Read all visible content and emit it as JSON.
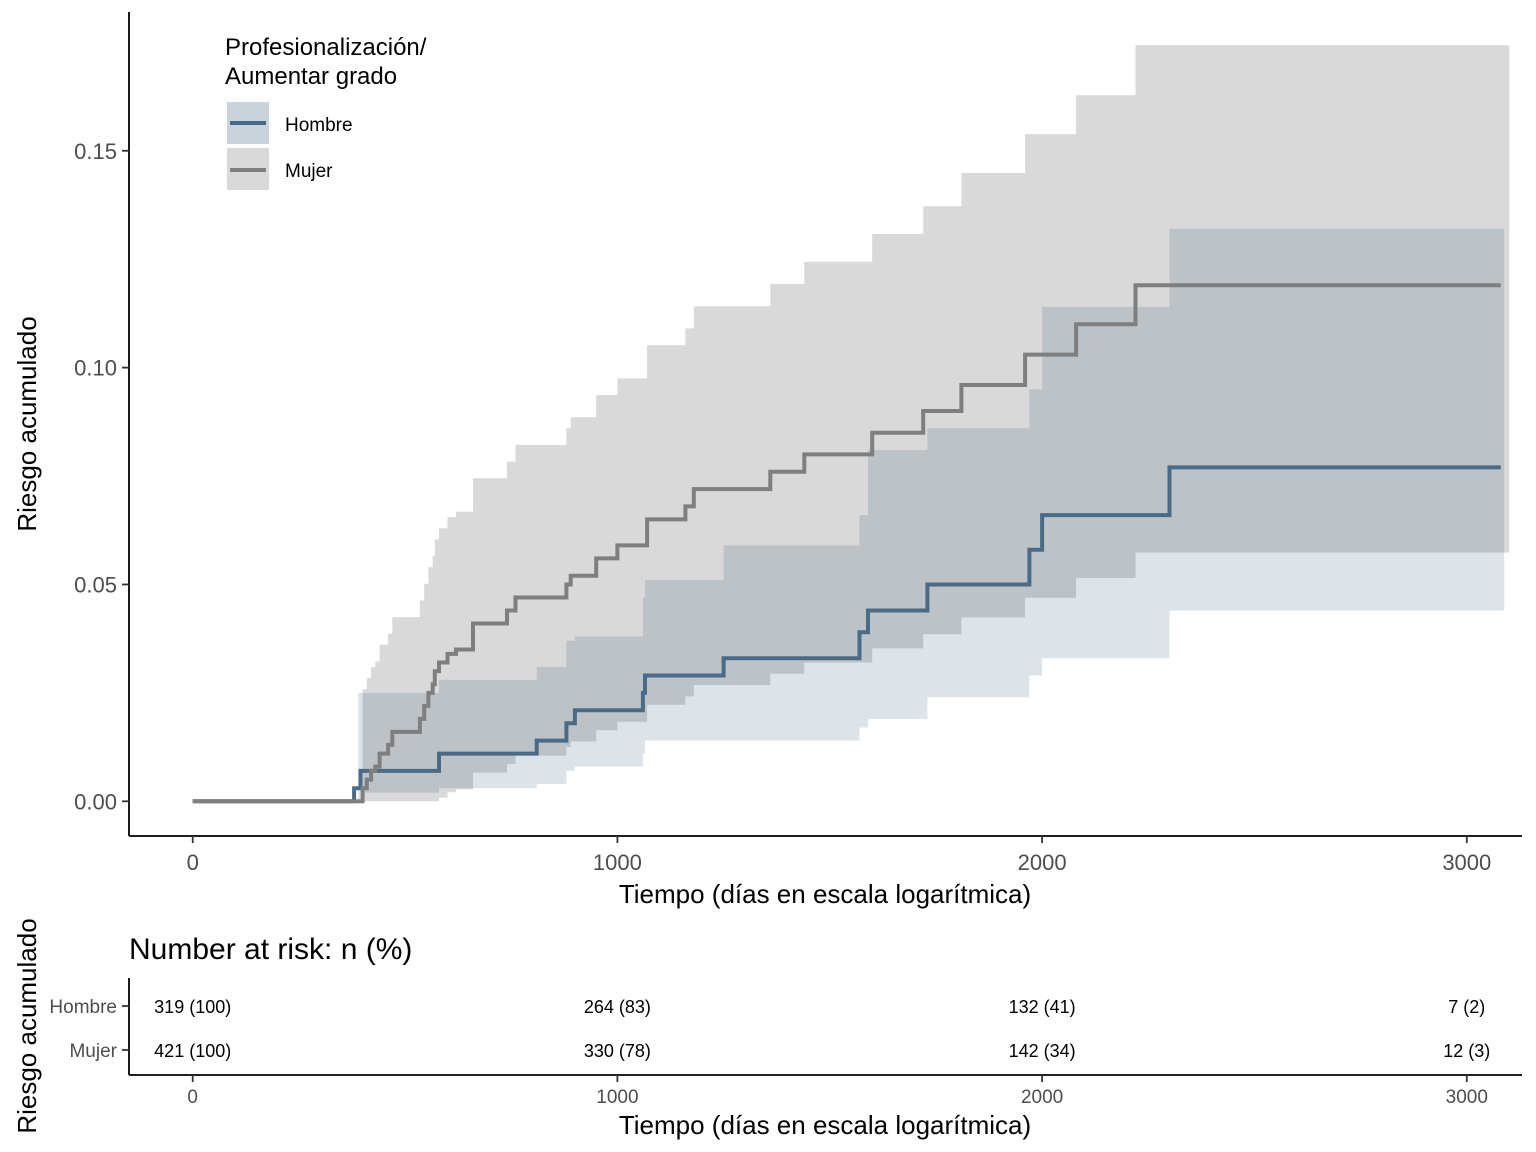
{
  "chart_data": {
    "type": "line",
    "step": true,
    "ylabel": "Riesgo acumulado",
    "xlabel": "Tiempo (días en escala logarítmica)",
    "xlim": [
      -150,
      3130
    ],
    "ylim": [
      -0.008,
      0.182
    ],
    "x_ticks": [
      0,
      1000,
      2000,
      3000
    ],
    "x_tick_labels": [
      "0",
      "1000",
      "2000",
      "3000"
    ],
    "y_ticks": [
      0.0,
      0.05,
      0.1,
      0.15
    ],
    "y_tick_labels": [
      "0.00",
      "0.05",
      "0.10",
      "0.15"
    ],
    "grid": false,
    "legend": {
      "title_lines": [
        "Profesionalización/",
        "Aumentar grado"
      ],
      "placement": "top-left"
    },
    "series": [
      {
        "name": "Hombre",
        "color": "#4a6b87",
        "ci_color": "#c8d3dc",
        "x": [
          0,
          380,
          395,
          480,
          580,
          810,
          880,
          900,
          1060,
          1065,
          1250,
          1570,
          1590,
          1730,
          1970,
          2000,
          2300,
          3080
        ],
        "y": [
          0.0,
          0.003,
          0.007,
          0.007,
          0.011,
          0.014,
          0.018,
          0.021,
          0.025,
          0.029,
          0.033,
          0.039,
          0.044,
          0.05,
          0.058,
          0.066,
          0.077,
          0.077
        ],
        "ci_x": [
          0,
          60,
          390,
          400,
          450,
          500,
          580,
          810,
          880,
          900,
          1060,
          1065,
          1250,
          1570,
          1590,
          1730,
          1970,
          2000,
          2300,
          3080
        ],
        "ci_lower": [
          0.0,
          0.0,
          0.0,
          0.002,
          0.002,
          0.002,
          0.003,
          0.004,
          0.007,
          0.008,
          0.011,
          0.014,
          0.014,
          0.017,
          0.019,
          0.024,
          0.029,
          0.033,
          0.044,
          0.044
        ],
        "ci_upper": [
          0.0,
          0.0,
          0.025,
          0.025,
          0.025,
          0.025,
          0.028,
          0.031,
          0.037,
          0.038,
          0.047,
          0.051,
          0.059,
          0.066,
          0.081,
          0.086,
          0.095,
          0.114,
          0.132,
          0.132
        ]
      },
      {
        "name": "Mujer",
        "color": "#7f7f7f",
        "ci_color": "#d9d9d9",
        "x": [
          0,
          400,
          410,
          420,
          430,
          440,
          460,
          470,
          530,
          535,
          545,
          555,
          565,
          570,
          580,
          600,
          620,
          660,
          710,
          740,
          760,
          880,
          890,
          950,
          1000,
          1050,
          1070,
          1160,
          1180,
          1360,
          1440,
          1600,
          1630,
          1720,
          1810,
          1960,
          2080,
          2220,
          3080
        ],
        "y": [
          0.0,
          0.003,
          0.005,
          0.007,
          0.008,
          0.011,
          0.013,
          0.016,
          0.016,
          0.019,
          0.022,
          0.025,
          0.027,
          0.03,
          0.032,
          0.034,
          0.035,
          0.041,
          0.041,
          0.044,
          0.047,
          0.05,
          0.052,
          0.056,
          0.059,
          0.059,
          0.065,
          0.068,
          0.072,
          0.076,
          0.08,
          0.085,
          0.085,
          0.09,
          0.096,
          0.103,
          0.11,
          0.119,
          0.119
        ]
      }
    ]
  },
  "risk_table": {
    "title": "Number at risk: n (%)",
    "ylabel": "Riesgo acumulado",
    "xlabel": "Tiempo (días en escala logarítmica)",
    "x_tick_labels": [
      "0",
      "1000",
      "2000",
      "3000"
    ],
    "rows": [
      {
        "label": "Hombre",
        "values": [
          "319 (100)",
          "264 (83)",
          "132 (41)",
          "7 (2)"
        ]
      },
      {
        "label": "Mujer",
        "values": [
          "421 (100)",
          "330 (78)",
          "142 (34)",
          "12 (3)"
        ]
      }
    ]
  }
}
